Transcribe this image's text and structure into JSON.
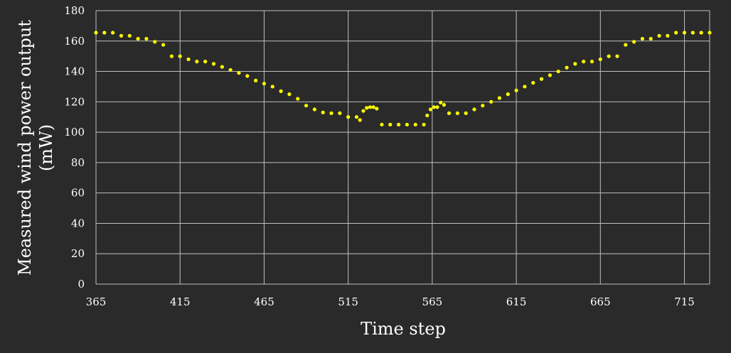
{
  "chart_data": {
    "type": "scatter",
    "title": "",
    "xlabel": "Time step",
    "ylabel_line1": "Measured wind power output",
    "ylabel_line2": "(mW)",
    "xlim": [
      365,
      730
    ],
    "ylim": [
      0,
      180
    ],
    "xticks": [
      365,
      415,
      465,
      515,
      565,
      615,
      665,
      715
    ],
    "yticks": [
      0,
      20,
      40,
      60,
      80,
      100,
      120,
      140,
      160,
      180
    ],
    "grid": true,
    "legend": "none",
    "colors": {
      "background": "#2a2a2a",
      "series": "#ffff00",
      "grid": "#bfbfbf",
      "text": "#ffffff"
    },
    "series": [
      {
        "x": [
          365,
          370,
          375,
          380,
          385,
          390,
          395,
          400,
          405,
          410,
          415,
          420,
          425,
          430,
          435,
          440,
          445,
          450,
          455,
          460,
          465,
          470,
          475,
          480,
          485,
          490,
          495,
          500,
          505,
          510,
          515,
          520,
          522,
          524,
          526,
          528,
          530,
          532,
          535,
          540,
          545,
          550,
          555,
          560,
          562,
          564,
          566,
          568,
          570,
          572,
          575,
          580,
          585,
          590,
          595,
          600,
          605,
          610,
          615,
          620,
          625,
          630,
          635,
          640,
          645,
          650,
          655,
          660,
          665,
          670,
          675,
          680,
          685,
          690,
          695,
          700,
          705,
          710,
          715,
          720,
          725,
          730
        ],
        "y": [
          165.5,
          165.5,
          165.5,
          163.5,
          163.5,
          161.5,
          161.5,
          159.5,
          157.5,
          150,
          150,
          148,
          146.5,
          146.5,
          145,
          143,
          141,
          139,
          137,
          134,
          132,
          130,
          127,
          125,
          122,
          117.5,
          115,
          113,
          112.5,
          112.5,
          110,
          110,
          108,
          114,
          116,
          116.5,
          116.5,
          115.5,
          105,
          105,
          105,
          105,
          105,
          105,
          111,
          115,
          116.5,
          116.5,
          119.5,
          118,
          112.5,
          112.5,
          112.5,
          115,
          117.5,
          120,
          122.5,
          125,
          127.5,
          130,
          132.5,
          135,
          137.5,
          140,
          142.5,
          145,
          146.5,
          146.5,
          148,
          150,
          150,
          157.5,
          159.5,
          161.5,
          161.5,
          163.5,
          163.5,
          165.5,
          165.5,
          165.5,
          165.5,
          165.5
        ]
      }
    ]
  }
}
